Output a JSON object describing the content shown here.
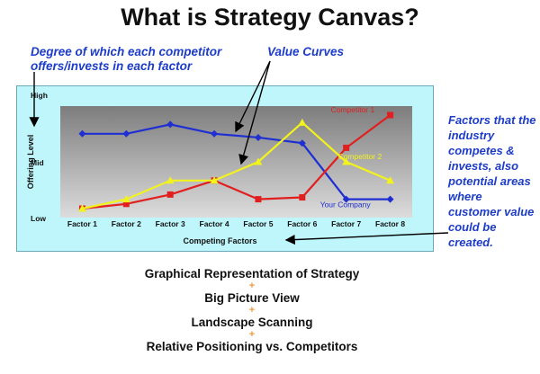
{
  "title": "What is Strategy Canvas?",
  "annotations": {
    "left": "Degree of which each competitor offers/invests in each factor",
    "value_curves": "Value Curves",
    "right": "Factors that the industry competes & invests, also potential areas where customer value could be created."
  },
  "chart_data": {
    "type": "line",
    "categories": [
      "Factor 1",
      "Factor 2",
      "Factor 3",
      "Factor 4",
      "Factor 5",
      "Factor 6",
      "Factor 7",
      "Factor 8"
    ],
    "xlabel": "Competing Factors",
    "ylabel": "Offering Level",
    "y_ticks": [
      "High",
      "Mid",
      "Low"
    ],
    "ylim": [
      0,
      10
    ],
    "grid": false,
    "series": [
      {
        "name": "Your Company",
        "color": "#1f2fd1",
        "marker": "diamond",
        "values": [
          8,
          8,
          9,
          8,
          7.6,
          7,
          1,
          1
        ]
      },
      {
        "name": "Competitor 1",
        "color": "#e11f1f",
        "marker": "square",
        "values": [
          0,
          0.5,
          1.5,
          3,
          1,
          1.2,
          6.5,
          10
        ]
      },
      {
        "name": "Competitor 2",
        "color": "#f2f21c",
        "marker": "triangle",
        "values": [
          0,
          1,
          3,
          3,
          5,
          9.2,
          5,
          3
        ]
      }
    ]
  },
  "steps": [
    "Graphical Representation of Strategy",
    "Big Picture View",
    "Landscape Scanning",
    "Relative Positioning vs. Competitors"
  ],
  "step_separator": "+"
}
